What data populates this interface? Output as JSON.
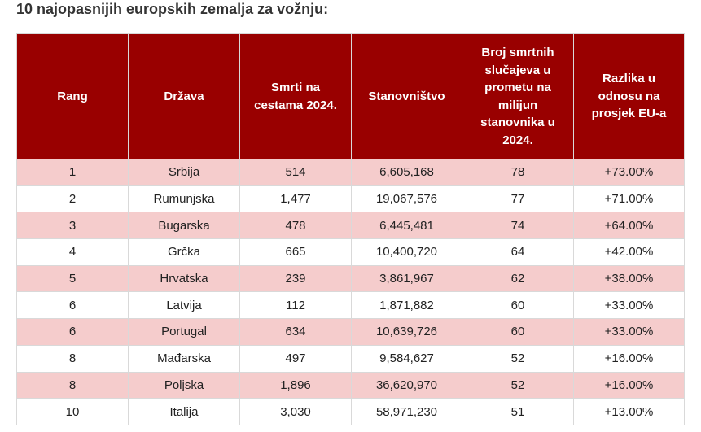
{
  "title": "10 najopasnijih europskih zemalja za vožnju:",
  "table": {
    "headers": [
      "Rang",
      "Država",
      "Smrti na cestama 2024.",
      "Stanovništvo",
      "Broj smrtnih slučajeva u prometu na milijun stanovnika u 2024.",
      "Razlika u odnosu na prosjek EU-a"
    ],
    "rows": [
      [
        "1",
        "Srbija",
        "514",
        "6,605,168",
        "78",
        "+73.00%"
      ],
      [
        "2",
        "Rumunjska",
        "1,477",
        "19,067,576",
        "77",
        "+71.00%"
      ],
      [
        "3",
        "Bugarska",
        "478",
        "6,445,481",
        "74",
        "+64.00%"
      ],
      [
        "4",
        "Grčka",
        "665",
        "10,400,720",
        "64",
        "+42.00%"
      ],
      [
        "5",
        "Hrvatska",
        "239",
        "3,861,967",
        "62",
        "+38.00%"
      ],
      [
        "6",
        "Latvija",
        "112",
        "1,871,882",
        "60",
        "+33.00%"
      ],
      [
        "6",
        "Portugal",
        "634",
        "10,639,726",
        "60",
        "+33.00%"
      ],
      [
        "8",
        "Mađarska",
        "497",
        "9,584,627",
        "52",
        "+16.00%"
      ],
      [
        "8",
        "Poljska",
        "1,896",
        "36,620,970",
        "52",
        "+16.00%"
      ],
      [
        "10",
        "Italija",
        "3,030",
        "58,971,230",
        "51",
        "+13.00%"
      ]
    ]
  },
  "colors": {
    "header_bg": "#990000",
    "header_text": "#ffffff",
    "odd_row_bg": "#f5cccc",
    "even_row_bg": "#ffffff"
  }
}
